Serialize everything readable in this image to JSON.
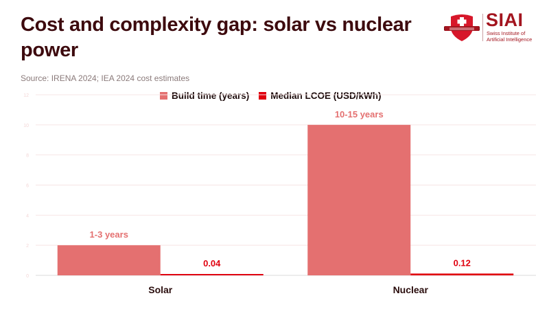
{
  "header": {
    "title": "Cost and complexity gap: solar vs nuclear power",
    "source": "Source: IRENA 2024; IEA 2024 cost estimates"
  },
  "logo": {
    "name": "SIAI",
    "subtitle_line1": "Swiss Institute of",
    "subtitle_line2": "Artificial Intelligence",
    "icon": "shield-cross-icon",
    "color": "#a3151f"
  },
  "chart_data": {
    "type": "bar",
    "title": "Cost and complexity gap: solar vs nuclear power",
    "subtitle": "Source: IRENA 2024; IEA 2024 cost estimates",
    "xlabel": "",
    "ylabel": "",
    "categories": [
      "Solar",
      "Nuclear"
    ],
    "series": [
      {
        "name": "Build time (years)",
        "values": [
          2,
          10
        ],
        "labels": [
          "1-3 years",
          "10-15 years"
        ],
        "color": "#e47070"
      },
      {
        "name": "Median LCOE (USD/kWh)",
        "values": [
          0.04,
          0.12
        ],
        "labels": [
          "0.04",
          "0.12"
        ],
        "color": "#e0000f"
      }
    ],
    "ylim": [
      0,
      12
    ],
    "yticks": [
      "0",
      "2",
      "4",
      "6",
      "8",
      "10",
      "12"
    ],
    "grid": true,
    "legend": "top-center",
    "colors": {
      "gridline": "#f7e4e4",
      "axis": "#d9d9d9",
      "tick_label": "#f3d6d6",
      "category_label": "#2a0d0d"
    }
  }
}
